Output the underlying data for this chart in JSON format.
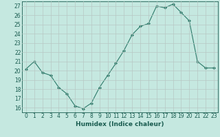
{
  "x": [
    0,
    1,
    2,
    3,
    4,
    5,
    6,
    7,
    8,
    9,
    10,
    11,
    12,
    13,
    14,
    15,
    16,
    17,
    18,
    19,
    20,
    21,
    22,
    23
  ],
  "y": [
    20.2,
    21.0,
    19.8,
    19.5,
    18.2,
    17.5,
    16.2,
    15.9,
    16.5,
    18.2,
    19.5,
    20.8,
    22.2,
    23.9,
    24.8,
    25.1,
    27.0,
    26.8,
    27.2,
    26.3,
    25.4,
    21.0,
    20.3,
    20.3
  ],
  "line_color": "#2d7a6a",
  "marker": "D",
  "marker_size": 2.0,
  "bg_color": "#c5e8e0",
  "grid_color": "#b8c8c4",
  "xlim": [
    -0.5,
    23.5
  ],
  "ylim": [
    15.5,
    27.5
  ],
  "yticks": [
    16,
    17,
    18,
    19,
    20,
    21,
    22,
    23,
    24,
    25,
    26,
    27
  ],
  "xticks": [
    0,
    1,
    2,
    3,
    4,
    5,
    6,
    7,
    8,
    9,
    10,
    11,
    12,
    13,
    14,
    15,
    16,
    17,
    18,
    19,
    20,
    21,
    22,
    23
  ],
  "tick_label_fontsize": 5.5,
  "xlabel": "Humidex (Indice chaleur)",
  "xlabel_fontsize": 6.5,
  "text_color": "#1a5c50",
  "linewidth": 0.8
}
